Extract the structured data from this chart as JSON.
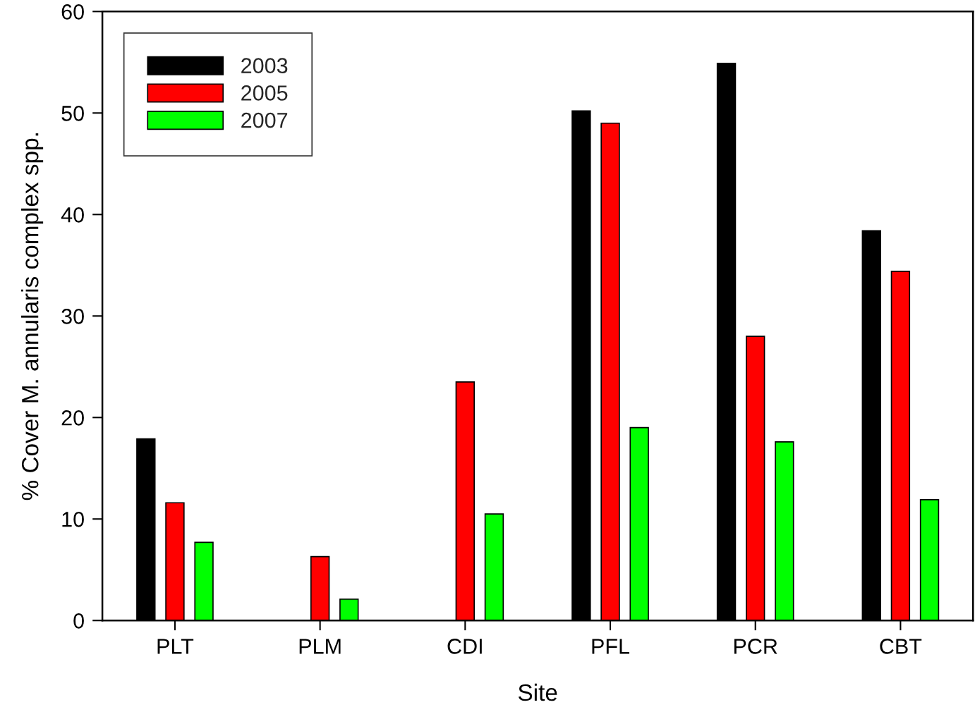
{
  "chart_data": {
    "type": "bar",
    "xlabel": "Site",
    "ylabel": "% Cover M. annularis complex spp.",
    "categories": [
      "PLT",
      "PLM",
      "CDI",
      "PFL",
      "PCR",
      "CBT"
    ],
    "series": [
      {
        "name": "2003",
        "color": "#000000",
        "values": [
          17.9,
          null,
          null,
          50.2,
          54.9,
          38.4
        ]
      },
      {
        "name": "2005",
        "color": "#ff0000",
        "values": [
          11.6,
          6.3,
          23.5,
          49.0,
          28.0,
          34.4
        ]
      },
      {
        "name": "2007",
        "color": "#00ff00",
        "values": [
          7.7,
          2.1,
          10.5,
          19.0,
          17.6,
          11.9
        ]
      }
    ],
    "ylim": [
      0,
      60
    ],
    "yticks": [
      0,
      10,
      20,
      30,
      40,
      50,
      60
    ],
    "grid": false,
    "legend": "top left"
  }
}
